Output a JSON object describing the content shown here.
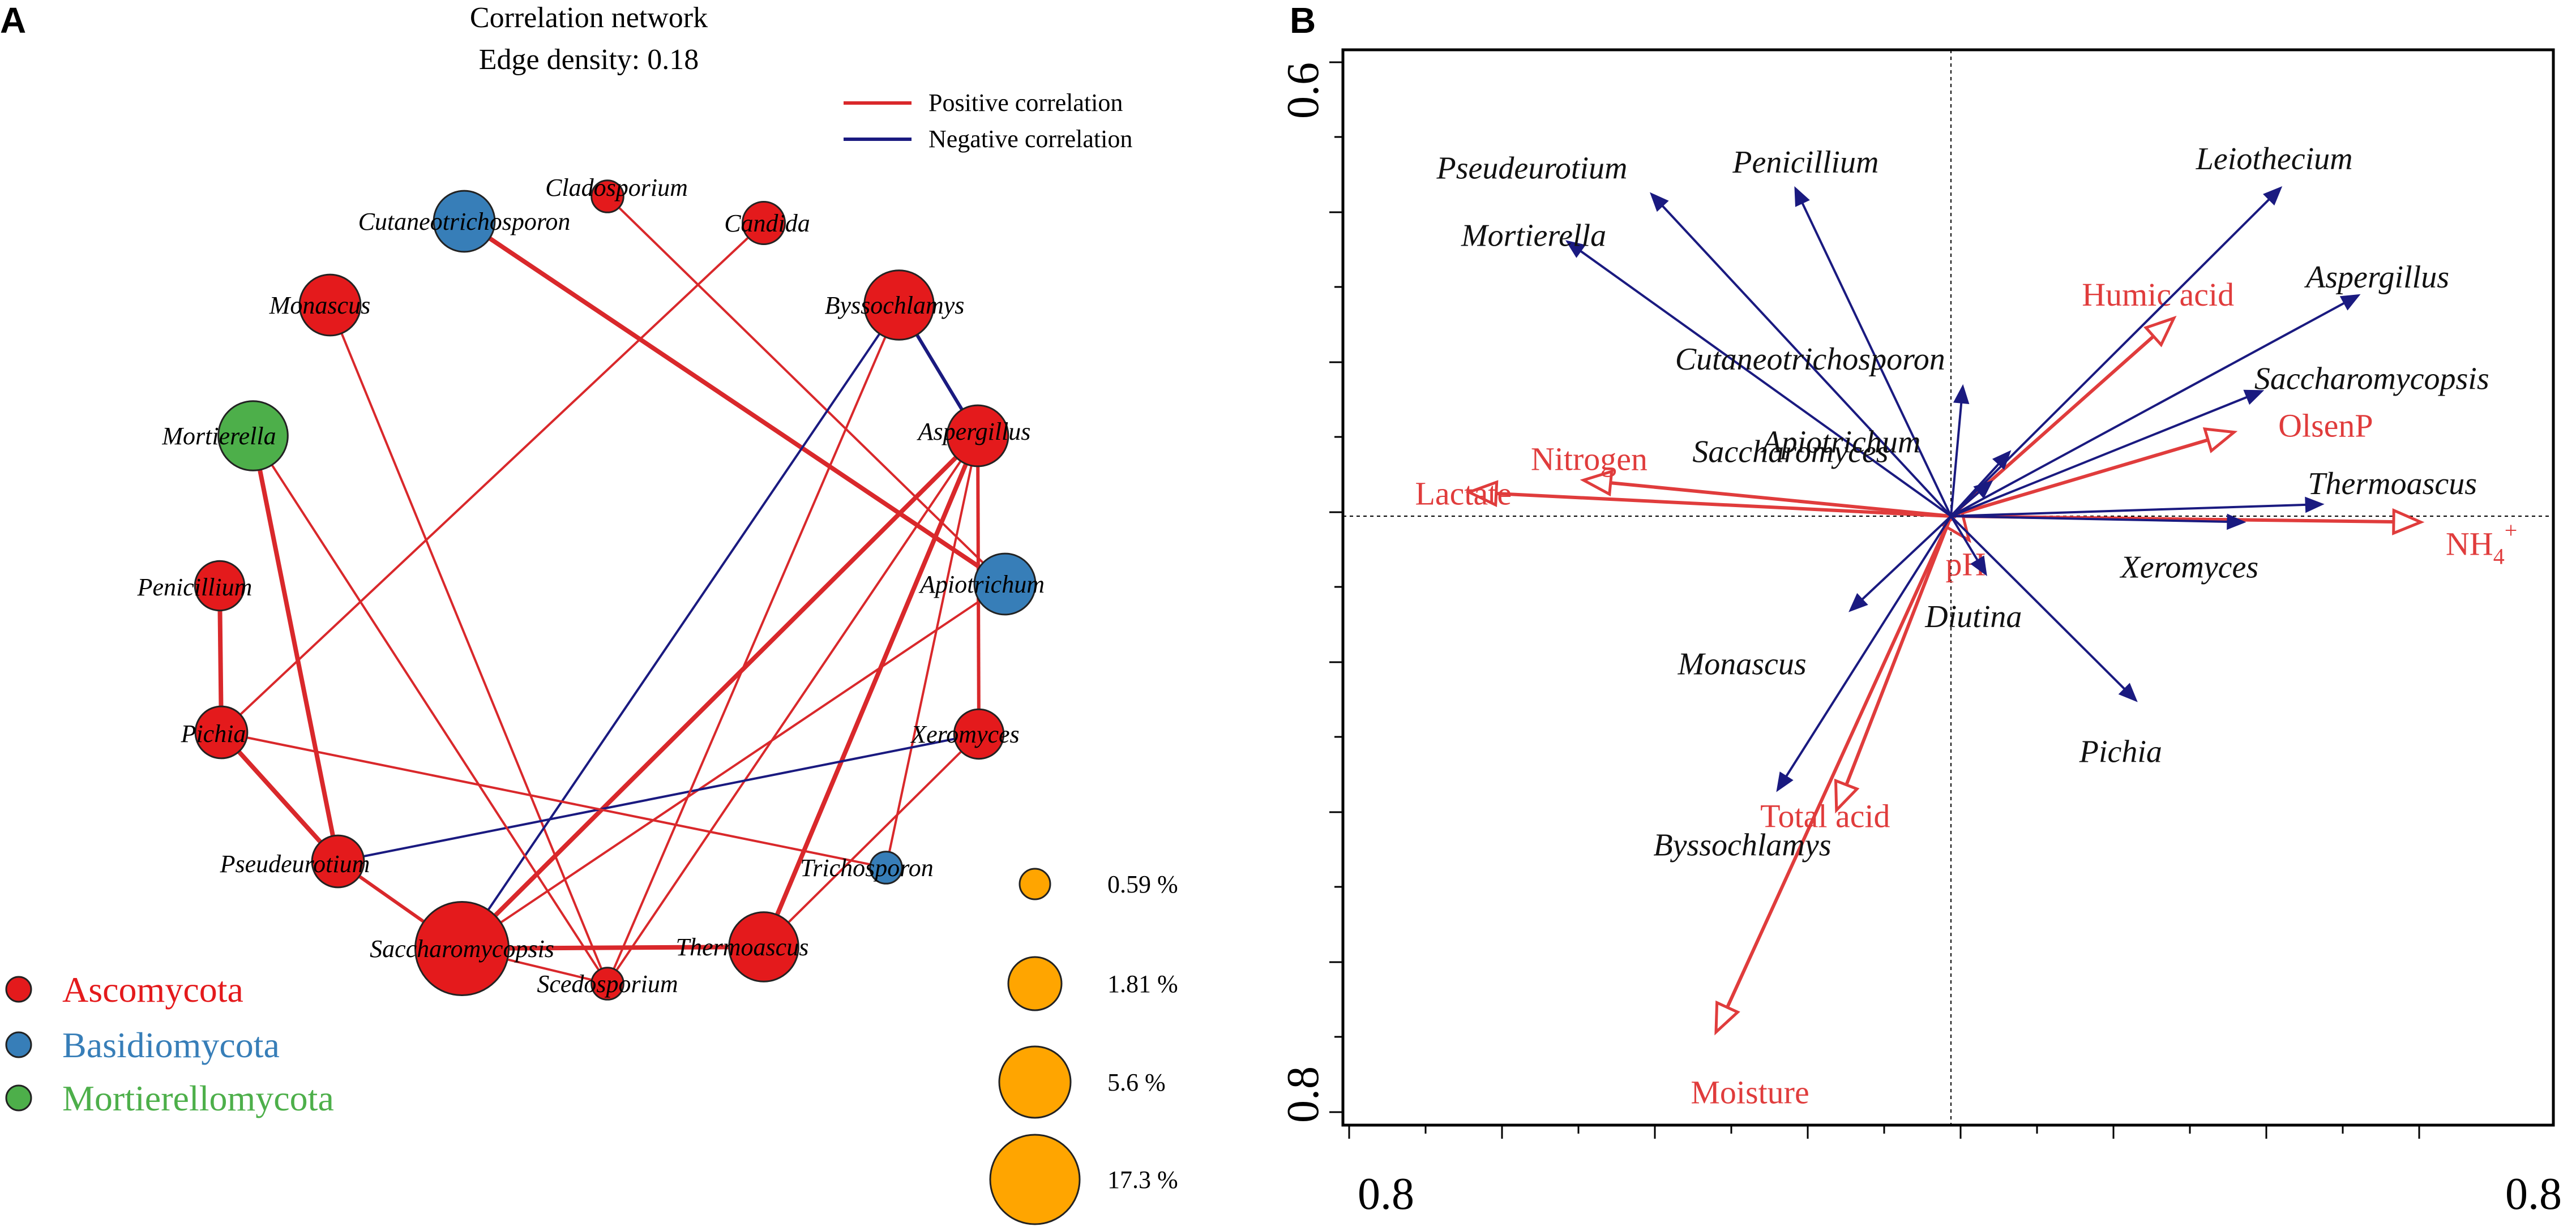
{
  "panel_a": {
    "letter": "A",
    "title": "Correlation network",
    "subtitle": "Edge density: 0.18",
    "legend": {
      "positive": {
        "label": "Positive correlation",
        "color": "#d9282b"
      },
      "negative": {
        "label": "Negative correlation",
        "color": "#1a1a80"
      }
    },
    "phyla": [
      {
        "name": "Ascomycota",
        "color": "#e41a1c"
      },
      {
        "name": "Basidiomycota",
        "color": "#377eb8"
      },
      {
        "name": "Mortierellomycota",
        "color": "#4daf4a"
      }
    ],
    "size_legend": {
      "color": "#ffa500",
      "entries": [
        {
          "label": "0.59 %",
          "value": 0.59
        },
        {
          "label": "1.81 %",
          "value": 1.81
        },
        {
          "label": "5.6 %",
          "value": 5.6
        },
        {
          "label": "17.3 %",
          "value": 17.3
        }
      ]
    }
  },
  "panel_b": {
    "letter": "B",
    "colors": {
      "species": "#1a1a80",
      "environment": "#e03c3c"
    }
  },
  "chart_data": [
    {
      "type": "network",
      "title": "Correlation network",
      "subtitle": "Edge density: 0.18",
      "nodes": [
        {
          "id": "Cladosporium",
          "label": "Cladosporium",
          "phylum": "Ascomycota",
          "abundance": 0.59
        },
        {
          "id": "Candida",
          "label": "Candida",
          "phylum": "Ascomycota",
          "abundance": 1.81
        },
        {
          "id": "Byssochlamys",
          "label": "Byssochlamys",
          "phylum": "Ascomycota",
          "abundance": 8.0
        },
        {
          "id": "Aspergillus",
          "label": "Aspergillus",
          "phylum": "Ascomycota",
          "abundance": 5.6
        },
        {
          "id": "Apiotrichum",
          "label": "Apiotrichum",
          "phylum": "Basidiomycota",
          "abundance": 5.6
        },
        {
          "id": "Xeromyces",
          "label": "Xeromyces",
          "phylum": "Ascomycota",
          "abundance": 3.0
        },
        {
          "id": "Trichosporon",
          "label": "Trichosporon",
          "phylum": "Basidiomycota",
          "abundance": 0.59
        },
        {
          "id": "Thermoascus",
          "label": "Thermoascus",
          "phylum": "Ascomycota",
          "abundance": 8.0
        },
        {
          "id": "Scedosporium",
          "label": "Scedosporium",
          "phylum": "Ascomycota",
          "abundance": 0.59
        },
        {
          "id": "Saccharomycopsis",
          "label": "Saccharomycopsis",
          "phylum": "Ascomycota",
          "abundance": 17.3
        },
        {
          "id": "Pseudeurotium",
          "label": "Pseudeurotium",
          "phylum": "Ascomycota",
          "abundance": 3.5
        },
        {
          "id": "Pichia",
          "label": "Pichia",
          "phylum": "Ascomycota",
          "abundance": 3.5
        },
        {
          "id": "Penicillium",
          "label": "Penicillium",
          "phylum": "Ascomycota",
          "abundance": 3.0
        },
        {
          "id": "Mortierella",
          "label": "Mortierella",
          "phylum": "Mortierellomycota",
          "abundance": 8.0
        },
        {
          "id": "Monascus",
          "label": "Monascus",
          "phylum": "Ascomycota",
          "abundance": 5.6
        },
        {
          "id": "Cutaneotrichosporon",
          "label": "Cutaneotrichosporon",
          "phylum": "Basidiomycota",
          "abundance": 5.6
        }
      ],
      "edges": [
        {
          "source": "Cutaneotrichosporon",
          "target": "Apiotrichum",
          "sign": "positive",
          "weight": 4
        },
        {
          "source": "Cladosporium",
          "target": "Apiotrichum",
          "sign": "positive",
          "weight": 2
        },
        {
          "source": "Candida",
          "target": "Pichia",
          "sign": "positive",
          "weight": 2
        },
        {
          "source": "Monascus",
          "target": "Scedosporium",
          "sign": "positive",
          "weight": 2
        },
        {
          "source": "Byssochlamys",
          "target": "Aspergillus",
          "sign": "negative",
          "weight": 3
        },
        {
          "source": "Byssochlamys",
          "target": "Saccharomycopsis",
          "sign": "negative",
          "weight": 2
        },
        {
          "source": "Aspergillus",
          "target": "Xeromyces",
          "sign": "positive",
          "weight": 3
        },
        {
          "source": "Aspergillus",
          "target": "Saccharomycopsis",
          "sign": "positive",
          "weight": 4
        },
        {
          "source": "Aspergillus",
          "target": "Thermoascus",
          "sign": "positive",
          "weight": 4
        },
        {
          "source": "Aspergillus",
          "target": "Scedosporium",
          "sign": "positive",
          "weight": 2
        },
        {
          "source": "Aspergillus",
          "target": "Trichosporon",
          "sign": "positive",
          "weight": 2
        },
        {
          "source": "Apiotrichum",
          "target": "Saccharomycopsis",
          "sign": "positive",
          "weight": 2
        },
        {
          "source": "Xeromyces",
          "target": "Pseudeurotium",
          "sign": "negative",
          "weight": 2
        },
        {
          "source": "Xeromyces",
          "target": "Thermoascus",
          "sign": "positive",
          "weight": 2
        },
        {
          "source": "Pichia",
          "target": "Trichosporon",
          "sign": "positive",
          "weight": 2
        },
        {
          "source": "Mortierella",
          "target": "Pseudeurotium",
          "sign": "positive",
          "weight": 4
        },
        {
          "source": "Mortierella",
          "target": "Scedosporium",
          "sign": "positive",
          "weight": 2
        },
        {
          "source": "Penicillium",
          "target": "Pichia",
          "sign": "positive",
          "weight": 4
        },
        {
          "source": "Pichia",
          "target": "Pseudeurotium",
          "sign": "positive",
          "weight": 4
        },
        {
          "source": "Pseudeurotium",
          "target": "Saccharomycopsis",
          "sign": "positive",
          "weight": 3
        },
        {
          "source": "Saccharomycopsis",
          "target": "Thermoascus",
          "sign": "positive",
          "weight": 4
        },
        {
          "source": "Saccharomycopsis",
          "target": "Scedosporium",
          "sign": "positive",
          "weight": 2
        },
        {
          "source": "Byssochlamys",
          "target": "Scedosporium",
          "sign": "positive",
          "weight": 2
        }
      ]
    },
    {
      "type": "biplot",
      "x_tick_labels": [
        "0.8",
        "0.8"
      ],
      "y_tick_labels": [
        "0.6",
        "0.8"
      ],
      "xlim": [
        -1,
        1
      ],
      "ylim": [
        -1,
        1
      ],
      "reference_lines": "dashed at x=0 and y=0",
      "environment_vectors": [
        {
          "label": "Humic acid",
          "x": 0.37,
          "y": 0.33
        },
        {
          "label": "OlsenP",
          "x": 0.47,
          "y": 0.14
        },
        {
          "label": "Nitrogen",
          "x": -0.61,
          "y": 0.06
        },
        {
          "label": "Lactate",
          "x": -0.8,
          "y": 0.04
        },
        {
          "label": "NH4+",
          "label_main": "NH",
          "label_sub": "4",
          "label_sup": "+",
          "x": 0.78,
          "y": -0.01
        },
        {
          "label": "pH",
          "x": 0.03,
          "y": -0.04
        },
        {
          "label": "Total acid",
          "x": -0.19,
          "y": -0.49
        },
        {
          "label": "Moisture",
          "x": -0.39,
          "y": -0.86
        }
      ],
      "species_vectors": [
        {
          "label": "Pseudeurotium",
          "x": -0.5,
          "y": 0.54
        },
        {
          "label": "Penicillium",
          "x": -0.26,
          "y": 0.55
        },
        {
          "label": "Mortierella",
          "x": -0.64,
          "y": 0.46
        },
        {
          "label": "Leiothecium",
          "x": 0.55,
          "y": 0.55
        },
        {
          "label": "Aspergillus",
          "x": 0.68,
          "y": 0.37
        },
        {
          "label": "Saccharomycopsis",
          "x": 0.52,
          "y": 0.21
        },
        {
          "label": "Cutaneotrichosporon",
          "x": 0.02,
          "y": 0.22
        },
        {
          "label": "Apiotrichum",
          "x": 0.1,
          "y": 0.11
        },
        {
          "label": "Saccharomyces",
          "x": 0.07,
          "y": 0.06
        },
        {
          "label": "Thermoascus",
          "x": 0.62,
          "y": 0.02
        },
        {
          "label": "Xeromyces",
          "x": 0.49,
          "y": -0.01
        },
        {
          "label": "Diutina",
          "x": 0.06,
          "y": -0.1
        },
        {
          "label": "Monascus",
          "x": -0.17,
          "y": -0.16
        },
        {
          "label": "Pichia",
          "x": 0.31,
          "y": -0.31
        },
        {
          "label": "Byssochlamys",
          "x": -0.29,
          "y": -0.46
        }
      ]
    }
  ]
}
